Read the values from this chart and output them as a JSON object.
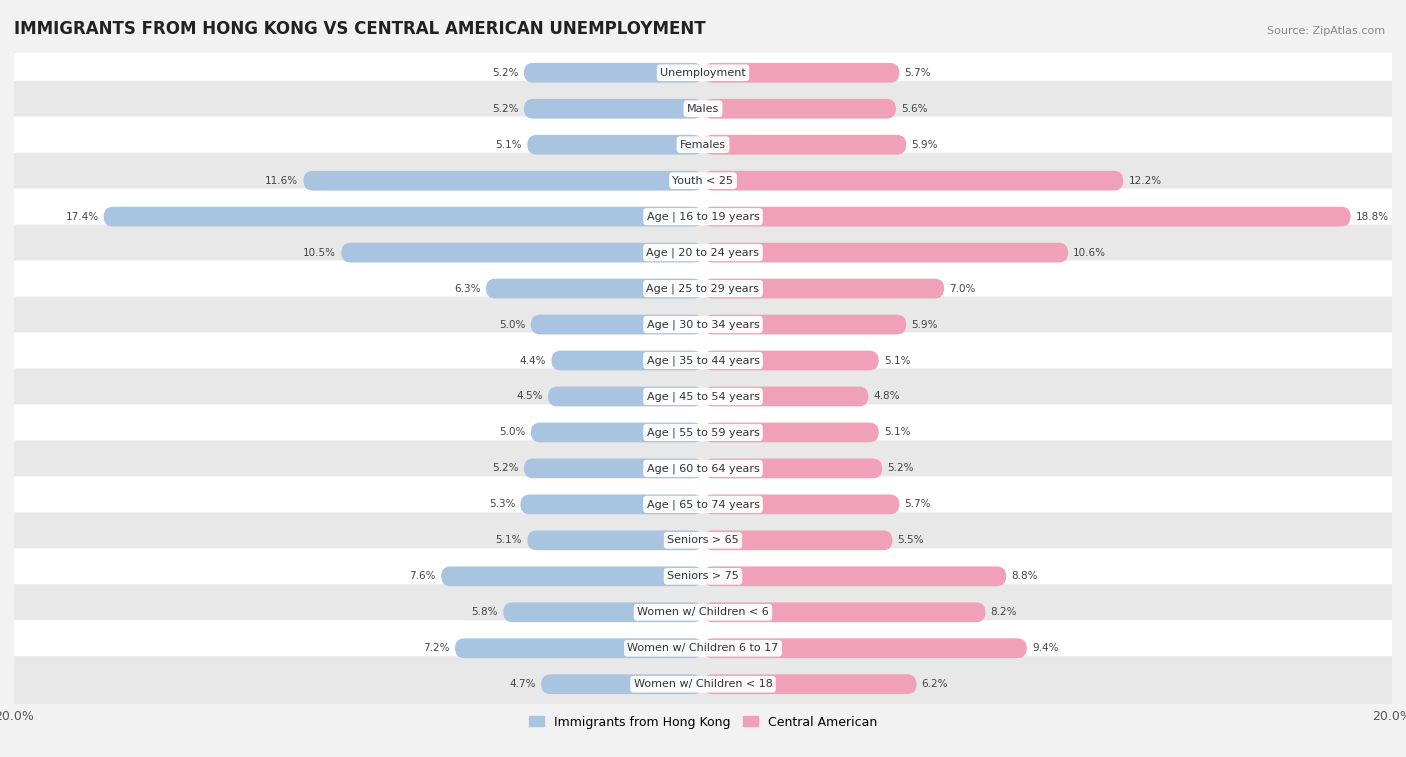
{
  "title": "IMMIGRANTS FROM HONG KONG VS CENTRAL AMERICAN UNEMPLOYMENT",
  "source": "Source: ZipAtlas.com",
  "categories": [
    "Unemployment",
    "Males",
    "Females",
    "Youth < 25",
    "Age | 16 to 19 years",
    "Age | 20 to 24 years",
    "Age | 25 to 29 years",
    "Age | 30 to 34 years",
    "Age | 35 to 44 years",
    "Age | 45 to 54 years",
    "Age | 55 to 59 years",
    "Age | 60 to 64 years",
    "Age | 65 to 74 years",
    "Seniors > 65",
    "Seniors > 75",
    "Women w/ Children < 6",
    "Women w/ Children 6 to 17",
    "Women w/ Children < 18"
  ],
  "hk_values": [
    5.2,
    5.2,
    5.1,
    11.6,
    17.4,
    10.5,
    6.3,
    5.0,
    4.4,
    4.5,
    5.0,
    5.2,
    5.3,
    5.1,
    7.6,
    5.8,
    7.2,
    4.7
  ],
  "ca_values": [
    5.7,
    5.6,
    5.9,
    12.2,
    18.8,
    10.6,
    7.0,
    5.9,
    5.1,
    4.8,
    5.1,
    5.2,
    5.7,
    5.5,
    8.8,
    8.2,
    9.4,
    6.2
  ],
  "hk_color": "#a8c4e0",
  "ca_color": "#f0a0b8",
  "hk_color_dark": "#6699cc",
  "ca_color_dark": "#e05878",
  "bg_color": "#f2f2f2",
  "row_even_color": "#ffffff",
  "row_odd_color": "#e8e8e8",
  "axis_limit": 20.0,
  "bar_height": 0.55,
  "legend_hk": "Immigrants from Hong Kong",
  "legend_ca": "Central American",
  "title_fontsize": 12,
  "source_fontsize": 8,
  "category_fontsize": 8,
  "value_fontsize": 7.5,
  "xlabel_fontsize": 9
}
